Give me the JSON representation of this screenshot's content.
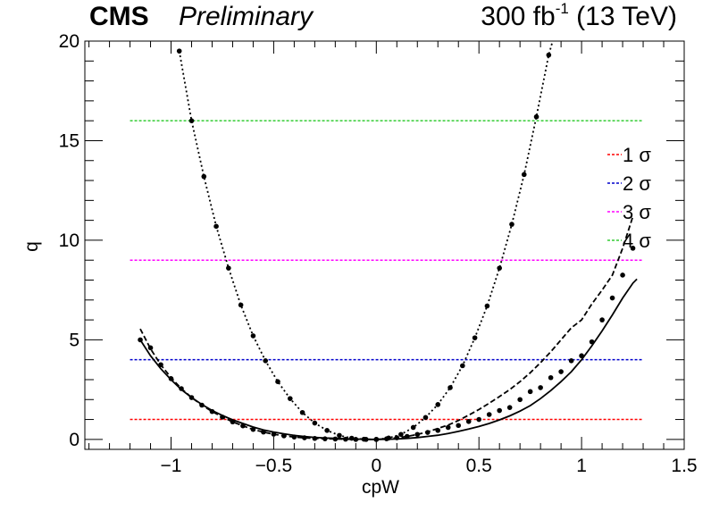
{
  "header": {
    "experiment": "CMS",
    "status": "Preliminary",
    "lumi_value": "300 fb",
    "lumi_exp": "-1",
    "energy": "(13 TeV)"
  },
  "chart_data": {
    "type": "line",
    "xlabel": "cpW",
    "ylabel": "q",
    "xlim": [
      -1.42,
      1.5
    ],
    "ylim": [
      -0.5,
      20
    ],
    "x_ticks": [
      -1,
      -0.5,
      0,
      0.5,
      1,
      1.5
    ],
    "x_tick_labels": [
      "−1",
      "−0.5",
      "0",
      "0.5",
      "1",
      "1.5"
    ],
    "y_ticks": [
      0,
      5,
      10,
      15,
      20
    ],
    "y_tick_labels": [
      "0",
      "5",
      "10",
      "15",
      "20"
    ],
    "grid": false,
    "legend_position": "right",
    "thresholds": [
      {
        "name": "1 σ",
        "y": 1,
        "color": "#ff0000"
      },
      {
        "name": "2 σ",
        "y": 4,
        "color": "#0000cc"
      },
      {
        "name": "3 σ",
        "y": 9,
        "color": "#ff00ff"
      },
      {
        "name": "4 σ",
        "y": 16,
        "color": "#33cc33"
      }
    ],
    "threshold_x_range": [
      -1.2,
      1.3
    ],
    "series": [
      {
        "style": "solid",
        "x": [
          -1.15,
          -1.1,
          -1.05,
          -1.0,
          -0.95,
          -0.9,
          -0.85,
          -0.8,
          -0.75,
          -0.7,
          -0.65,
          -0.6,
          -0.55,
          -0.5,
          -0.45,
          -0.4,
          -0.35,
          -0.3,
          -0.25,
          -0.2,
          -0.15,
          -0.1,
          -0.05,
          0.0,
          0.05,
          0.1,
          0.15,
          0.2,
          0.25,
          0.3,
          0.35,
          0.4,
          0.45,
          0.5,
          0.55,
          0.6,
          0.65,
          0.7,
          0.75,
          0.8,
          0.85,
          0.9,
          0.95,
          1.0,
          1.05,
          1.1,
          1.15,
          1.2,
          1.25,
          1.27
        ],
        "y": [
          5.0,
          4.2,
          3.55,
          3.0,
          2.5,
          2.1,
          1.75,
          1.45,
          1.2,
          0.98,
          0.8,
          0.62,
          0.48,
          0.37,
          0.28,
          0.2,
          0.14,
          0.1,
          0.07,
          0.05,
          0.03,
          0.015,
          0.005,
          0.0,
          0.005,
          0.02,
          0.05,
          0.09,
          0.15,
          0.21,
          0.3,
          0.4,
          0.52,
          0.65,
          0.8,
          0.98,
          1.18,
          1.42,
          1.7,
          2.05,
          2.45,
          2.9,
          3.4,
          4.0,
          4.7,
          5.45,
          6.25,
          7.1,
          7.85,
          8.05
        ]
      },
      {
        "style": "dashed",
        "x": [
          -1.15,
          -1.1,
          -1.05,
          -1.0,
          -0.95,
          -0.9,
          -0.85,
          -0.8,
          -0.75,
          -0.7,
          -0.65,
          -0.6,
          -0.55,
          -0.5,
          -0.45,
          -0.4,
          -0.35,
          -0.3,
          -0.25,
          -0.2,
          -0.15,
          -0.1,
          -0.05,
          0.0,
          0.05,
          0.1,
          0.15,
          0.2,
          0.25,
          0.3,
          0.35,
          0.4,
          0.45,
          0.5,
          0.55,
          0.6,
          0.65,
          0.7,
          0.75,
          0.8,
          0.85,
          0.9,
          0.95,
          1.0,
          1.05,
          1.1,
          1.15,
          1.2,
          1.25
        ],
        "y": [
          5.55,
          4.55,
          3.75,
          3.1,
          2.55,
          2.1,
          1.72,
          1.4,
          1.12,
          0.88,
          0.68,
          0.5,
          0.37,
          0.26,
          0.18,
          0.12,
          0.08,
          0.05,
          0.03,
          0.02,
          0.01,
          0.0,
          0.0,
          0.0,
          0.03,
          0.08,
          0.15,
          0.25,
          0.38,
          0.55,
          0.72,
          0.95,
          1.22,
          1.5,
          1.82,
          2.15,
          2.5,
          2.9,
          3.35,
          3.85,
          4.4,
          5.0,
          5.6,
          6.0,
          6.8,
          7.5,
          8.25,
          9.6,
          11.2
        ]
      },
      {
        "style": "dotted",
        "x": [
          -0.96,
          -0.9,
          -0.84,
          -0.78,
          -0.72,
          -0.66,
          -0.6,
          -0.54,
          -0.48,
          -0.42,
          -0.36,
          -0.3,
          -0.24,
          -0.18,
          -0.12,
          -0.06,
          0.0,
          0.06,
          0.12,
          0.18,
          0.24,
          0.3,
          0.36,
          0.42,
          0.48,
          0.54,
          0.6,
          0.66,
          0.72,
          0.78,
          0.84,
          0.9
        ],
        "y": [
          19.5,
          16.0,
          13.2,
          10.7,
          8.6,
          6.75,
          5.2,
          3.95,
          2.9,
          2.05,
          1.35,
          0.82,
          0.45,
          0.2,
          0.06,
          0.01,
          0.0,
          0.07,
          0.25,
          0.6,
          1.1,
          1.75,
          2.6,
          3.7,
          5.1,
          6.7,
          8.6,
          10.8,
          13.3,
          16.2,
          19.3,
          21.5
        ]
      }
    ],
    "markers": [
      {
        "x": [
          -1.15,
          -1.1,
          -1.05,
          -1.0,
          -0.95,
          -0.9,
          -0.85,
          -0.8,
          -0.75,
          -0.7,
          -0.65,
          -0.6,
          -0.55,
          -0.5,
          -0.45,
          -0.4,
          -0.35,
          -0.3,
          -0.25,
          -0.2,
          -0.15,
          -0.1,
          -0.05,
          0.0,
          0.05,
          0.1,
          0.15,
          0.2,
          0.25,
          0.3,
          0.35,
          0.4,
          0.45,
          0.5,
          0.55,
          0.6,
          0.65,
          0.7,
          0.75,
          0.8,
          0.85,
          0.9,
          0.95,
          1.0,
          1.05,
          1.1,
          1.15,
          1.2,
          1.25
        ],
        "y": [
          5.0,
          4.6,
          3.75,
          3.05,
          2.55,
          2.1,
          1.72,
          1.4,
          1.12,
          0.88,
          0.68,
          0.5,
          0.37,
          0.26,
          0.18,
          0.12,
          0.08,
          0.05,
          0.03,
          0.02,
          0.01,
          0.0,
          0.0,
          0.0,
          0.03,
          0.08,
          0.15,
          0.25,
          0.35,
          0.45,
          0.6,
          0.7,
          0.9,
          1.0,
          1.25,
          1.45,
          1.6,
          2.0,
          2.4,
          2.6,
          3.1,
          3.4,
          3.95,
          4.2,
          4.9,
          6.0,
          7.1,
          8.25,
          9.6
        ]
      },
      {
        "x": [
          -0.96,
          -0.9,
          -0.84,
          -0.78,
          -0.72,
          -0.66,
          -0.6,
          -0.54,
          -0.48,
          -0.42,
          -0.36,
          -0.3,
          -0.24,
          -0.18,
          -0.12,
          -0.06,
          0.0,
          0.06,
          0.12,
          0.18,
          0.24,
          0.3,
          0.36,
          0.42,
          0.48,
          0.54,
          0.6,
          0.66,
          0.72,
          0.78,
          0.84,
          0.9
        ],
        "y": [
          19.5,
          16.0,
          13.2,
          10.7,
          8.6,
          6.75,
          5.2,
          3.95,
          2.9,
          2.05,
          1.35,
          0.82,
          0.45,
          0.2,
          0.06,
          0.01,
          0.0,
          0.07,
          0.25,
          0.6,
          1.1,
          1.75,
          2.6,
          3.7,
          5.1,
          6.7,
          8.6,
          10.8,
          13.3,
          16.2,
          19.3,
          21.5
        ]
      }
    ]
  }
}
